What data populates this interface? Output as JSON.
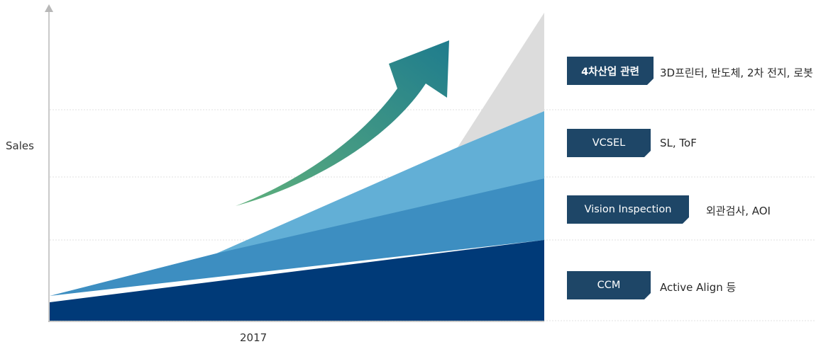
{
  "axis": {
    "y_label": "Sales",
    "x_label": "2017"
  },
  "legend": [
    {
      "tag": "4차산업 관련",
      "description": "3D프린터, 반도체, 2차 전지, 로봇",
      "color": "#dcdcdc"
    },
    {
      "tag": "VCSEL",
      "description": "SL, ToF",
      "color": "#62afd6"
    },
    {
      "tag": "Vision Inspection",
      "description": "외관검사, AOI",
      "color": "#3d8ec1"
    },
    {
      "tag": "CCM",
      "description": "Active Align 등",
      "color": "#003a78"
    }
  ],
  "colors": {
    "badge": "#1e4667",
    "arrow_start": "#5fb07c",
    "arrow_end": "#1f7c8d",
    "axis": "#b8b8b8",
    "gridline": "#e2e2e2"
  }
}
